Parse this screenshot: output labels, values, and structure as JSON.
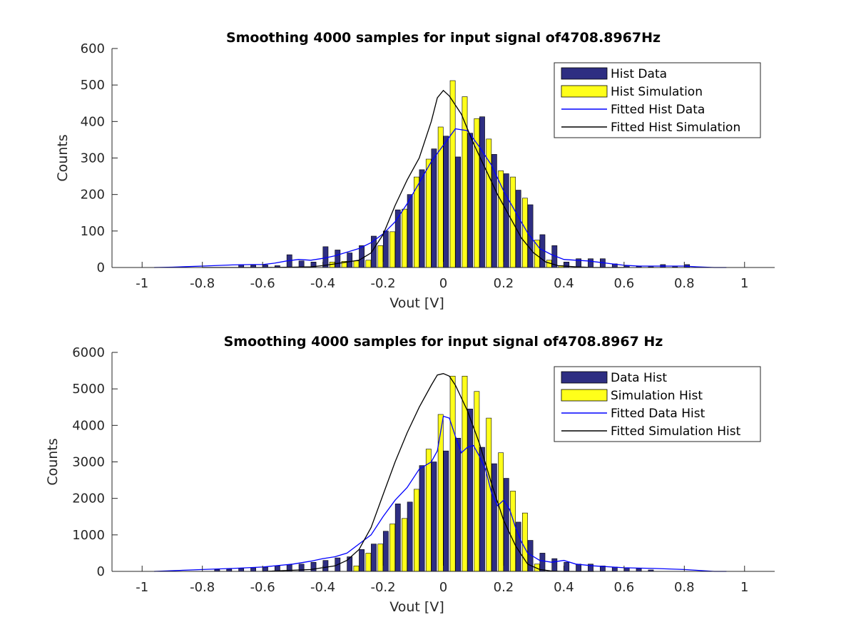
{
  "colors": {
    "data_bar": "#2e2e82",
    "sim_bar": "#ffff1a",
    "data_fit": "#0000ff",
    "sim_fit": "#000000"
  },
  "chart_data": [
    {
      "type": "bar",
      "title": "Smoothing 4000 samples for input signal of4708.8967Hz",
      "xlabel": "Vout [V]",
      "ylabel": "Counts",
      "xlim": [
        -1.1,
        1.1
      ],
      "ylim": [
        0,
        600
      ],
      "xticks": [
        -1,
        -0.8,
        -0.6,
        -0.4,
        -0.2,
        0,
        0.2,
        0.4,
        0.6,
        0.8,
        1
      ],
      "yticks": [
        0,
        100,
        200,
        300,
        400,
        500,
        600
      ],
      "grid": false,
      "legend_position": "top-right",
      "bar_centers": [
        -0.68,
        -0.64,
        -0.6,
        -0.56,
        -0.52,
        -0.48,
        -0.44,
        -0.4,
        -0.36,
        -0.32,
        -0.28,
        -0.24,
        -0.2,
        -0.16,
        -0.12,
        -0.08,
        -0.04,
        0.0,
        0.04,
        0.08,
        0.12,
        0.16,
        0.2,
        0.24,
        0.28,
        0.32,
        0.36,
        0.4,
        0.44,
        0.48,
        0.52,
        0.56,
        0.6,
        0.64,
        0.68,
        0.72,
        0.76,
        0.8
      ],
      "series": [
        {
          "name": "Hist Data",
          "kind": "bar",
          "values": [
            8,
            6,
            7,
            5,
            35,
            18,
            15,
            57,
            48,
            40,
            60,
            86,
            100,
            158,
            200,
            268,
            325,
            360,
            303,
            368,
            413,
            310,
            257,
            212,
            172,
            90,
            60,
            15,
            24,
            24,
            24,
            10,
            5,
            3,
            2,
            8,
            2,
            8
          ]
        },
        {
          "name": "Hist Simulation",
          "kind": "bar",
          "values": [
            0,
            0,
            0,
            0,
            0,
            0,
            0,
            0,
            15,
            17,
            18,
            20,
            60,
            98,
            160,
            248,
            297,
            385,
            512,
            468,
            408,
            352,
            265,
            248,
            190,
            75,
            20,
            5,
            0,
            0,
            0,
            0,
            0,
            0,
            0,
            0,
            0,
            0
          ]
        },
        {
          "name": "Fitted Hist Data",
          "kind": "line",
          "x": [
            -0.96,
            -0.9,
            -0.8,
            -0.7,
            -0.64,
            -0.6,
            -0.56,
            -0.52,
            -0.48,
            -0.44,
            -0.4,
            -0.36,
            -0.32,
            -0.28,
            -0.24,
            -0.2,
            -0.16,
            -0.12,
            -0.08,
            -0.04,
            0.0,
            0.04,
            0.08,
            0.12,
            0.16,
            0.2,
            0.24,
            0.28,
            0.32,
            0.36,
            0.4,
            0.44,
            0.48,
            0.52,
            0.56,
            0.6,
            0.65,
            0.7,
            0.75,
            0.8,
            0.84,
            0.9,
            0.94
          ],
          "values": [
            0,
            1,
            4,
            7,
            8,
            8,
            12,
            18,
            22,
            20,
            25,
            32,
            42,
            52,
            68,
            92,
            125,
            175,
            232,
            290,
            335,
            380,
            375,
            330,
            280,
            210,
            152,
            95,
            52,
            35,
            22,
            20,
            18,
            14,
            10,
            6,
            4,
            4,
            4,
            4,
            2,
            0,
            0
          ]
        },
        {
          "name": "Fitted Hist Simulation",
          "kind": "line",
          "x": [
            -0.8,
            -0.6,
            -0.5,
            -0.44,
            -0.4,
            -0.36,
            -0.32,
            -0.28,
            -0.24,
            -0.2,
            -0.16,
            -0.12,
            -0.08,
            -0.04,
            -0.02,
            0.0,
            0.02,
            0.06,
            0.1,
            0.14,
            0.18,
            0.22,
            0.26,
            0.3,
            0.34,
            0.38,
            0.44,
            0.5,
            0.6
          ],
          "values": [
            0,
            0,
            1,
            2,
            5,
            10,
            15,
            20,
            40,
            90,
            170,
            240,
            300,
            400,
            465,
            485,
            470,
            420,
            340,
            270,
            200,
            140,
            80,
            40,
            15,
            5,
            2,
            0,
            0
          ]
        }
      ]
    },
    {
      "type": "bar",
      "title": "Smoothing 4000 samples for input signal of4708.8967 Hz",
      "xlabel": "Vout [V]",
      "ylabel": "Counts",
      "xlim": [
        -1.1,
        1.1
      ],
      "ylim": [
        0,
        6000
      ],
      "xticks": [
        -1,
        -0.8,
        -0.6,
        -0.4,
        -0.2,
        0,
        0.2,
        0.4,
        0.6,
        0.8,
        1
      ],
      "yticks": [
        0,
        1000,
        2000,
        3000,
        4000,
        5000,
        6000
      ],
      "grid": false,
      "legend_position": "top-right",
      "bar_centers": [
        -0.76,
        -0.72,
        -0.68,
        -0.64,
        -0.6,
        -0.56,
        -0.52,
        -0.48,
        -0.44,
        -0.4,
        -0.36,
        -0.32,
        -0.28,
        -0.24,
        -0.2,
        -0.16,
        -0.12,
        -0.08,
        -0.04,
        0.0,
        0.04,
        0.08,
        0.12,
        0.16,
        0.2,
        0.24,
        0.28,
        0.32,
        0.36,
        0.4,
        0.44,
        0.48,
        0.52,
        0.56,
        0.6,
        0.64,
        0.68
      ],
      "series": [
        {
          "name": "Data Hist",
          "kind": "bar",
          "values": [
            50,
            60,
            80,
            100,
            120,
            150,
            180,
            200,
            250,
            300,
            370,
            400,
            600,
            750,
            1100,
            1850,
            1900,
            2900,
            3000,
            3300,
            3650,
            4450,
            3400,
            2950,
            2550,
            1350,
            850,
            500,
            350,
            250,
            200,
            200,
            150,
            120,
            100,
            80,
            40
          ]
        },
        {
          "name": "Simulation Hist",
          "kind": "bar",
          "values": [
            0,
            0,
            0,
            0,
            0,
            0,
            0,
            0,
            0,
            0,
            0,
            0,
            150,
            500,
            750,
            1300,
            1450,
            2250,
            3350,
            4300,
            5350,
            5350,
            4930,
            4200,
            3250,
            2200,
            1600,
            200,
            0,
            0,
            0,
            0,
            0,
            0,
            0,
            0,
            0
          ]
        },
        {
          "name": "Fitted Data Hist",
          "kind": "line",
          "x": [
            -0.96,
            -0.9,
            -0.8,
            -0.7,
            -0.6,
            -0.5,
            -0.44,
            -0.4,
            -0.36,
            -0.32,
            -0.28,
            -0.24,
            -0.2,
            -0.16,
            -0.12,
            -0.08,
            -0.04,
            -0.02,
            0.0,
            0.02,
            0.04,
            0.06,
            0.08,
            0.1,
            0.12,
            0.14,
            0.16,
            0.18,
            0.2,
            0.22,
            0.24,
            0.26,
            0.28,
            0.3,
            0.32,
            0.36,
            0.4,
            0.44,
            0.5,
            0.6,
            0.7,
            0.8,
            0.9,
            0.94
          ],
          "values": [
            0,
            20,
            50,
            80,
            120,
            200,
            280,
            350,
            400,
            500,
            750,
            1000,
            1500,
            1950,
            2300,
            2800,
            3000,
            3300,
            4250,
            4200,
            3700,
            3250,
            3400,
            3450,
            3150,
            2800,
            2150,
            1800,
            1950,
            1700,
            1200,
            800,
            500,
            400,
            300,
            250,
            300,
            200,
            150,
            100,
            80,
            50,
            0,
            0
          ]
        },
        {
          "name": "Fitted Simulation Hist",
          "kind": "line",
          "x": [
            -0.6,
            -0.44,
            -0.36,
            -0.32,
            -0.28,
            -0.24,
            -0.2,
            -0.16,
            -0.12,
            -0.08,
            -0.04,
            -0.02,
            0.0,
            0.02,
            0.04,
            0.08,
            0.12,
            0.16,
            0.2,
            0.24,
            0.28,
            0.32,
            0.36,
            0.4,
            0.5
          ],
          "values": [
            0,
            50,
            150,
            300,
            600,
            1200,
            2100,
            3000,
            3800,
            4500,
            5100,
            5380,
            5420,
            5350,
            5100,
            4400,
            3500,
            2400,
            1400,
            700,
            200,
            50,
            10,
            0,
            0
          ]
        }
      ]
    }
  ]
}
